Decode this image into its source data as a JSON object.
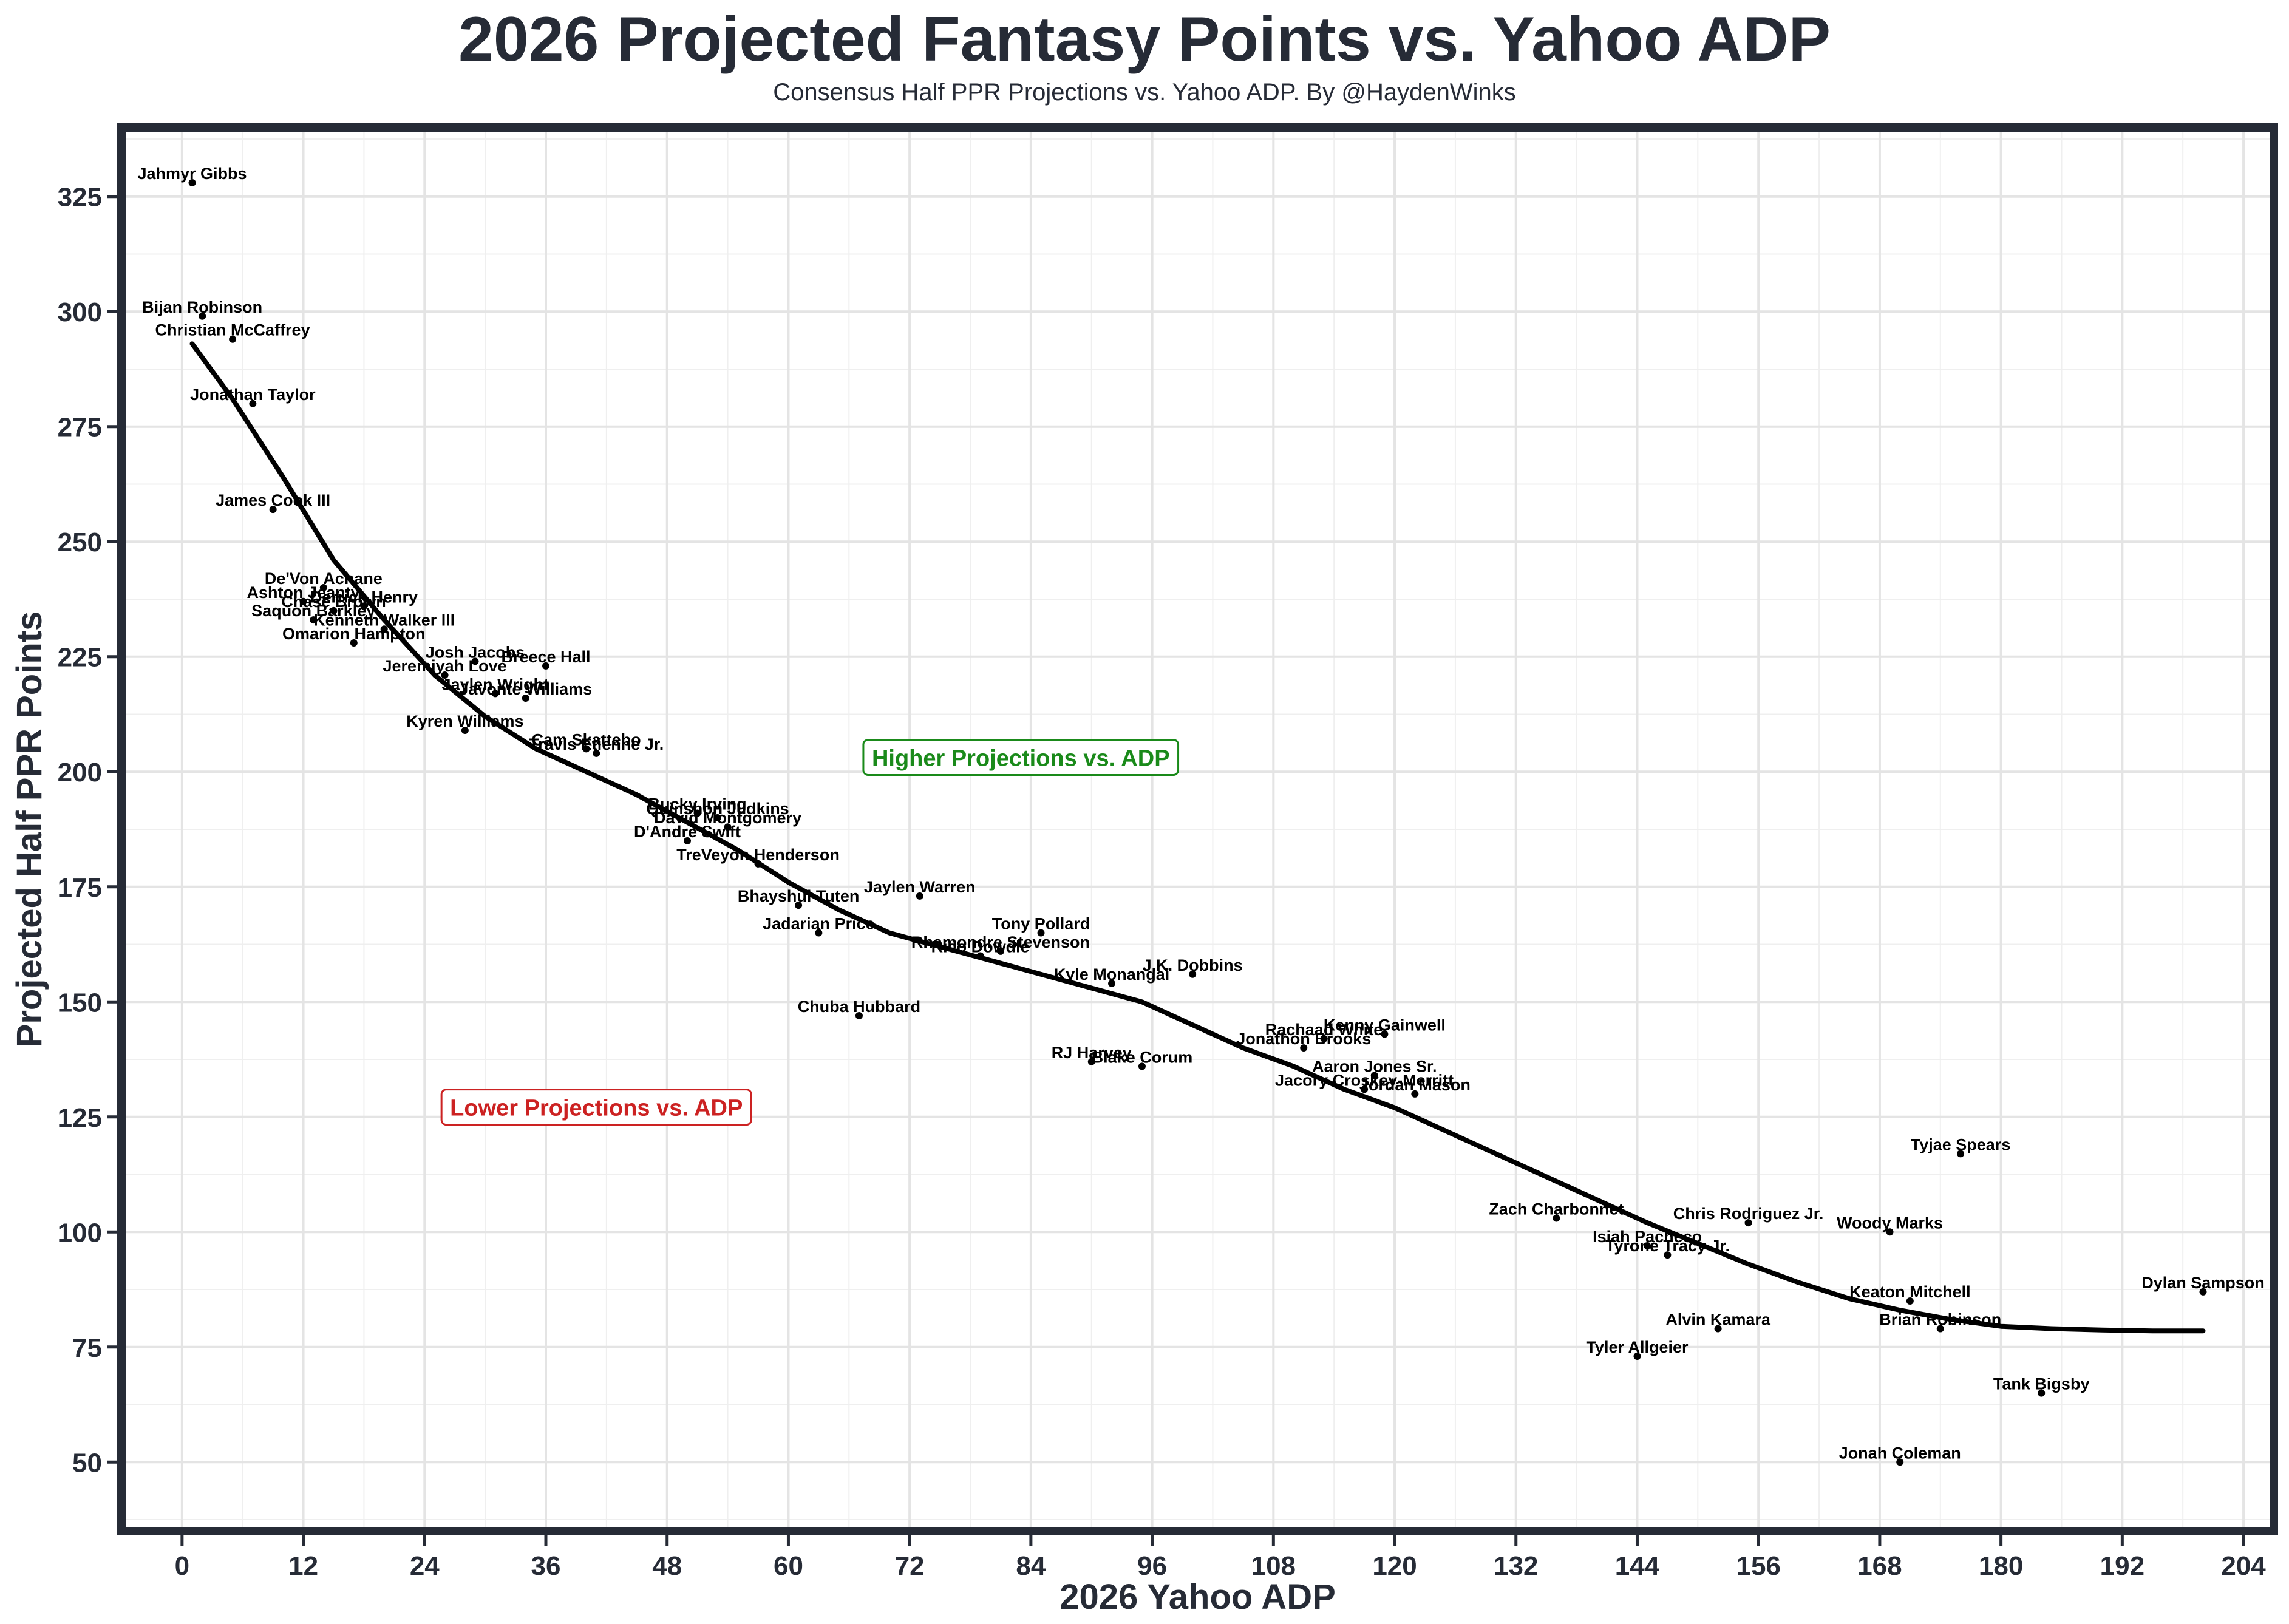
{
  "chart_data": {
    "type": "scatter",
    "title": "2026 Projected Fantasy Points vs. Yahoo ADP",
    "subtitle": "Consensus Half PPR Projections vs. Yahoo ADP. By @HaydenWinks",
    "xlabel": "2026 Yahoo ADP",
    "ylabel": "Projected Half PPR Points",
    "xlim": [
      -6,
      207
    ],
    "ylim": [
      35,
      340
    ],
    "x_ticks": [
      0,
      12,
      24,
      36,
      48,
      60,
      72,
      84,
      96,
      108,
      120,
      132,
      144,
      156,
      168,
      180,
      192,
      204
    ],
    "y_ticks": [
      50,
      75,
      100,
      125,
      150,
      175,
      200,
      225,
      250,
      275,
      300,
      325
    ],
    "grid": true,
    "annotations": [
      {
        "text": "Higher Projections vs. ADP",
        "x": 83,
        "y": 203,
        "color": "#1a8a1a"
      },
      {
        "text": "Lower Projections vs. ADP",
        "x": 41,
        "y": 127,
        "color": "#cc2222"
      }
    ],
    "points": [
      {
        "name": "Jahmyr Gibbs",
        "x": 1,
        "y": 328
      },
      {
        "name": "Bijan Robinson",
        "x": 2,
        "y": 299
      },
      {
        "name": "Christian McCaffrey",
        "x": 5,
        "y": 294
      },
      {
        "name": "Jonathan Taylor",
        "x": 7,
        "y": 280
      },
      {
        "name": "James Cook III",
        "x": 9,
        "y": 257
      },
      {
        "name": "De'Von Achane",
        "x": 14,
        "y": 240
      },
      {
        "name": "Ashton Jeanty",
        "x": 12,
        "y": 237
      },
      {
        "name": "Derrick Henry",
        "x": 18,
        "y": 236
      },
      {
        "name": "Chase Brown",
        "x": 15,
        "y": 235
      },
      {
        "name": "Saquon Barkley",
        "x": 13,
        "y": 233
      },
      {
        "name": "Kenneth Walker III",
        "x": 20,
        "y": 231
      },
      {
        "name": "Omarion Hampton",
        "x": 17,
        "y": 228
      },
      {
        "name": "Josh Jacobs",
        "x": 29,
        "y": 224
      },
      {
        "name": "Breece Hall",
        "x": 36,
        "y": 223
      },
      {
        "name": "Jeremiyah Love",
        "x": 26,
        "y": 221
      },
      {
        "name": "Jaylen Wright",
        "x": 31,
        "y": 217
      },
      {
        "name": "Javonte Williams",
        "x": 34,
        "y": 216
      },
      {
        "name": "Kyren Williams",
        "x": 28,
        "y": 209
      },
      {
        "name": "Cam Skattebo",
        "x": 40,
        "y": 205
      },
      {
        "name": "Travis Etienne Jr.",
        "x": 41,
        "y": 204
      },
      {
        "name": "Bucky Irving",
        "x": 51,
        "y": 191
      },
      {
        "name": "Quinshon Judkins",
        "x": 53,
        "y": 190
      },
      {
        "name": "David Montgomery",
        "x": 54,
        "y": 188
      },
      {
        "name": "D'Andre Swift",
        "x": 50,
        "y": 185
      },
      {
        "name": "TreVeyon Henderson",
        "x": 57,
        "y": 180
      },
      {
        "name": "Jaylen Warren",
        "x": 73,
        "y": 173
      },
      {
        "name": "Bhayshul Tuten",
        "x": 61,
        "y": 171
      },
      {
        "name": "Tony Pollard",
        "x": 85,
        "y": 165
      },
      {
        "name": "Jadarian Price",
        "x": 63,
        "y": 165
      },
      {
        "name": "Rhamondre Stevenson",
        "x": 81,
        "y": 161
      },
      {
        "name": "Rico Dowdle",
        "x": 79,
        "y": 160
      },
      {
        "name": "J.K. Dobbins",
        "x": 100,
        "y": 156
      },
      {
        "name": "Kyle Monangai",
        "x": 92,
        "y": 154
      },
      {
        "name": "Chuba Hubbard",
        "x": 67,
        "y": 147
      },
      {
        "name": "Kenny Gainwell",
        "x": 119,
        "y": 143
      },
      {
        "name": "Rachaad White",
        "x": 113,
        "y": 142
      },
      {
        "name": "Jonathon Brooks",
        "x": 111,
        "y": 140
      },
      {
        "name": "RJ Harvey",
        "x": 90,
        "y": 137
      },
      {
        "name": "Blake Corum",
        "x": 95,
        "y": 136
      },
      {
        "name": "Aaron Jones Sr.",
        "x": 118,
        "y": 134
      },
      {
        "name": "Jacory Croskey-Merritt",
        "x": 117,
        "y": 131
      },
      {
        "name": "Jordan Mason",
        "x": 122,
        "y": 130
      },
      {
        "name": "Tyjae Spears",
        "x": 176,
        "y": 117
      },
      {
        "name": "Zach Charbonnet",
        "x": 136,
        "y": 103
      },
      {
        "name": "Chris Rodriguez Jr.",
        "x": 155,
        "y": 102
      },
      {
        "name": "Woody Marks",
        "x": 169,
        "y": 100
      },
      {
        "name": "Isiah Pacheco",
        "x": 145,
        "y": 97
      },
      {
        "name": "Tyrone Tracy Jr.",
        "x": 147,
        "y": 95
      },
      {
        "name": "Dylan Sampson",
        "x": 200,
        "y": 87
      },
      {
        "name": "Keaton Mitchell",
        "x": 171,
        "y": 85
      },
      {
        "name": "Alvin Kamara",
        "x": 152,
        "y": 79
      },
      {
        "name": "Brian Robinson",
        "x": 174,
        "y": 79
      },
      {
        "name": "Tyler Allgeier",
        "x": 144,
        "y": 73
      },
      {
        "name": "Tank Bigsby",
        "x": 184,
        "y": 65
      },
      {
        "name": "Jonah Coleman",
        "x": 170,
        "y": 50
      }
    ],
    "trend_line": {
      "x": [
        1,
        5,
        10,
        15,
        20,
        25,
        30,
        35,
        40,
        45,
        50,
        55,
        60,
        65,
        70,
        75,
        80,
        85,
        90,
        95,
        100,
        105,
        110,
        115,
        120,
        125,
        130,
        135,
        140,
        145,
        150,
        155,
        160,
        165,
        170,
        175,
        180,
        185,
        190,
        195,
        200
      ],
      "y": [
        293,
        281,
        264,
        246,
        233,
        221,
        212,
        205,
        200,
        195,
        189,
        183,
        176,
        170,
        165,
        162,
        159,
        156,
        153,
        150,
        145,
        140,
        136,
        131,
        127,
        122,
        117,
        112,
        107,
        102,
        97.5,
        93,
        89,
        85.5,
        83,
        81,
        79.5,
        79,
        78.7,
        78.5,
        78.5
      ]
    }
  }
}
